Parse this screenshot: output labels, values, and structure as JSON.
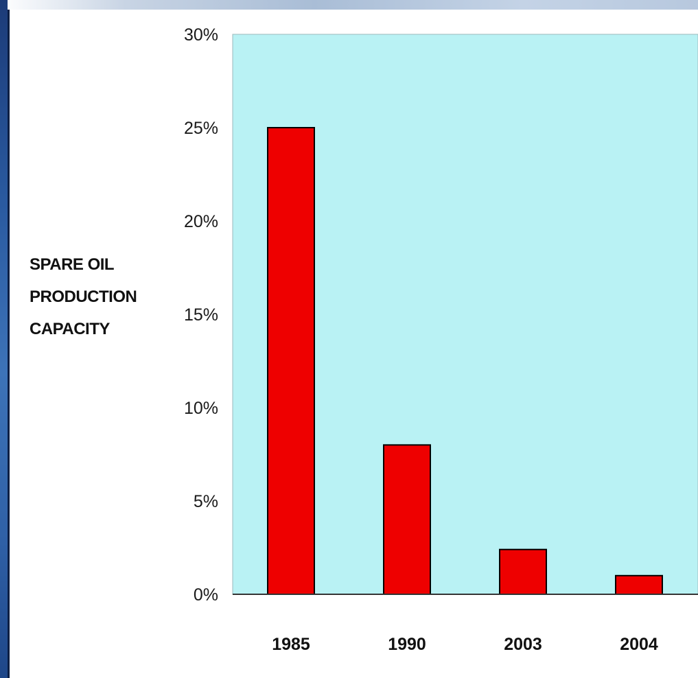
{
  "colors": {
    "plot_background": "#b9f2f4",
    "bar_fill": "#ee0000",
    "bar_stroke": "#000000",
    "axis": "#333333",
    "frame_blue": "#2a5aa0"
  },
  "chart_data": {
    "type": "bar",
    "title": "",
    "xlabel": "",
    "ylabel_lines": [
      "SPARE OIL",
      "PRODUCTION",
      "CAPACITY"
    ],
    "categories": [
      "1985",
      "1990",
      "2003",
      "2004"
    ],
    "values": [
      25,
      8,
      2.4,
      1
    ],
    "unit": "%",
    "ylim": [
      0,
      30
    ],
    "yticks": [
      0,
      5,
      10,
      15,
      20,
      25,
      30
    ],
    "ytick_labels": [
      "0%",
      "5%",
      "10%",
      "15%",
      "20%",
      "25%",
      "30%"
    ],
    "grid": false,
    "legend": "none"
  }
}
